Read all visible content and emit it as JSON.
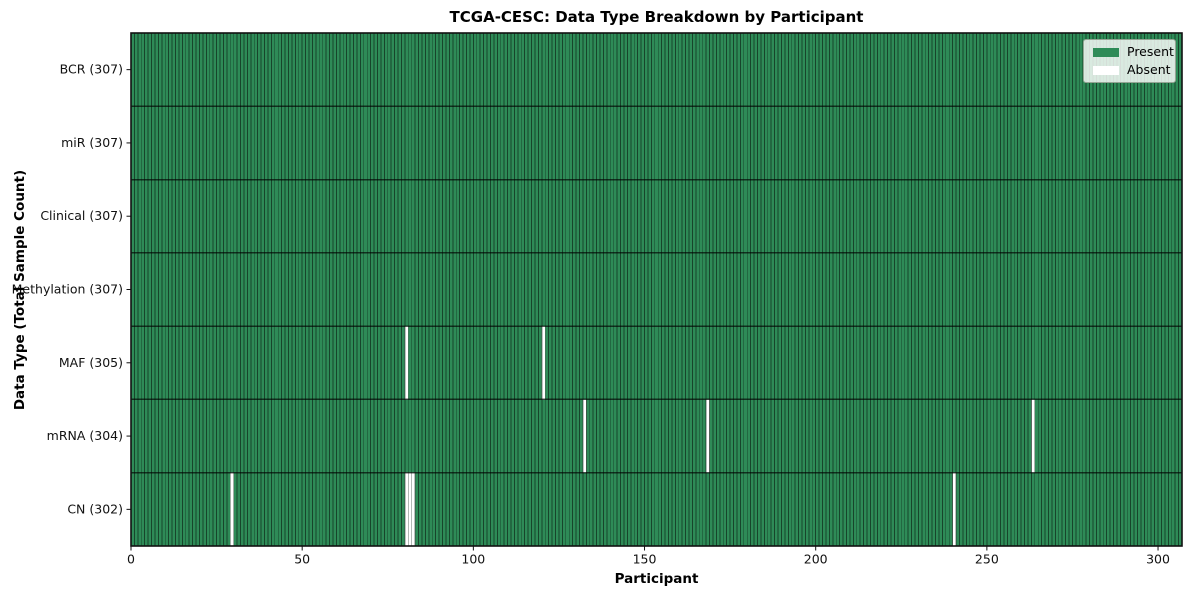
{
  "chart_data": {
    "type": "heatmap",
    "title": "TCGA-CESC: Data Type Breakdown by Participant",
    "xlabel": "Participant",
    "ylabel": "Data Type (Total Sample Count)",
    "participants_total": 307,
    "x_ticks": [
      0,
      50,
      100,
      150,
      200,
      250,
      300
    ],
    "x_range": [
      0,
      307
    ],
    "grid": false,
    "rows": [
      {
        "label": "BCR",
        "count": 307,
        "tick_label": "BCR (307)",
        "absent_participants": []
      },
      {
        "label": "miR",
        "count": 307,
        "tick_label": "miR (307)",
        "absent_participants": []
      },
      {
        "label": "Clinical",
        "count": 307,
        "tick_label": "Clinical (307)",
        "absent_participants": []
      },
      {
        "label": "Methylation",
        "count": 307,
        "tick_label": "Methylation (307)",
        "absent_participants": []
      },
      {
        "label": "MAF",
        "count": 305,
        "tick_label": "MAF (305)",
        "absent_participants": [
          80,
          120
        ]
      },
      {
        "label": "mRNA",
        "count": 304,
        "tick_label": "mRNA (304)",
        "absent_participants": [
          132,
          168,
          263
        ]
      },
      {
        "label": "CN",
        "count": 302,
        "tick_label": "CN (302)",
        "absent_participants": [
          29,
          80,
          81,
          82,
          240
        ]
      }
    ],
    "colors": {
      "present": "#2e8b57",
      "absent": "#ffffff",
      "cell_edge": "rgba(0,0,0,0.5)",
      "row_edge": "rgba(0,0,0,0.65)",
      "plot_border": "#111111",
      "tick": "#111111"
    },
    "legend": {
      "position": "upper right",
      "entries": [
        {
          "label": "Present",
          "color_key": "present"
        },
        {
          "label": "Absent",
          "color_key": "absent"
        }
      ]
    }
  }
}
